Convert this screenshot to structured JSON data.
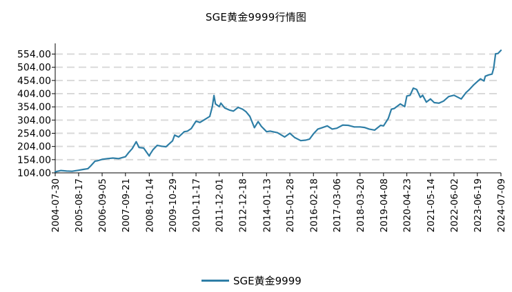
{
  "chart_data": {
    "type": "line",
    "title": "SGE黄金9999行情图",
    "xlabel": "",
    "ylabel": "",
    "ylim": [
      104,
      584
    ],
    "y_ticks": [
      "104.00",
      "154.00",
      "204.00",
      "254.00",
      "304.00",
      "354.00",
      "404.00",
      "454.00",
      "504.00",
      "554.00"
    ],
    "x_ticks": [
      "2004-07-30",
      "2005-08-17",
      "2006-09-05",
      "2007-09-21",
      "2008-10-14",
      "2009-10-29",
      "2010-11-17",
      "2011-12-01",
      "2012-12-18",
      "2014-01-13",
      "2015-01-28",
      "2016-02-18",
      "2017-03-06",
      "2018-03-20",
      "2019-04-08",
      "2020-04-23",
      "2021-05-14",
      "2022-06-02",
      "2023-06-19",
      "2024-07-09"
    ],
    "grid": true,
    "legend_position": "bottom",
    "color": "#2e7ea6",
    "series": [
      {
        "name": "SGE黄金9999",
        "x": [
          "2004-07-30",
          "2004-11-01",
          "2005-02-01",
          "2005-05-01",
          "2005-08-17",
          "2005-11-01",
          "2006-01-15",
          "2006-03-01",
          "2006-05-10",
          "2006-06-20",
          "2006-09-05",
          "2006-12-01",
          "2007-03-01",
          "2007-06-01",
          "2007-09-21",
          "2007-11-10",
          "2008-01-10",
          "2008-03-15",
          "2008-05-01",
          "2008-07-15",
          "2008-10-14",
          "2008-10-28",
          "2008-12-15",
          "2009-02-20",
          "2009-05-01",
          "2009-07-15",
          "2009-09-10",
          "2009-10-29",
          "2009-12-03",
          "2010-02-05",
          "2010-05-10",
          "2010-07-01",
          "2010-09-01",
          "2010-11-17",
          "2011-01-20",
          "2011-04-15",
          "2011-06-30",
          "2011-08-10",
          "2011-09-06",
          "2011-10-01",
          "2011-12-01",
          "2011-12-28",
          "2012-02-28",
          "2012-05-15",
          "2012-07-20",
          "2012-10-05",
          "2012-12-18",
          "2013-02-10",
          "2013-04-15",
          "2013-06-28",
          "2013-08-28",
          "2013-10-20",
          "2014-01-13",
          "2014-03-15",
          "2014-07-10",
          "2014-11-05",
          "2015-01-28",
          "2015-04-15",
          "2015-07-25",
          "2015-10-15",
          "2015-12-17",
          "2016-02-18",
          "2016-05-01",
          "2016-07-08",
          "2016-10-01",
          "2016-12-20",
          "2017-03-06",
          "2017-06-10",
          "2017-09-08",
          "2017-12-15",
          "2018-03-20",
          "2018-06-01",
          "2018-08-16",
          "2018-11-15",
          "2019-02-20",
          "2019-04-08",
          "2019-06-25",
          "2019-08-15",
          "2019-10-01",
          "2020-01-08",
          "2020-03-19",
          "2020-04-23",
          "2020-06-15",
          "2020-08-07",
          "2020-09-30",
          "2020-11-30",
          "2021-01-06",
          "2021-03-08",
          "2021-05-14",
          "2021-07-15",
          "2021-09-30",
          "2021-12-15",
          "2022-03-08",
          "2022-06-02",
          "2022-09-28",
          "2022-12-15",
          "2023-02-10",
          "2023-04-15",
          "2023-06-19",
          "2023-08-10",
          "2023-10-06",
          "2023-10-27",
          "2023-12-20",
          "2024-02-15",
          "2024-03-12",
          "2024-04-12",
          "2024-05-20",
          "2024-07-09"
        ],
        "values": [
          108,
          113,
          111,
          110,
          114,
          117,
          120,
          130,
          148,
          150,
          155,
          158,
          160,
          158,
          165,
          180,
          196,
          222,
          200,
          198,
          168,
          175,
          192,
          208,
          205,
          203,
          215,
          225,
          247,
          240,
          260,
          262,
          272,
          300,
          295,
          307,
          318,
          355,
          397,
          365,
          355,
          368,
          350,
          342,
          338,
          352,
          345,
          336,
          318,
          275,
          298,
          280,
          260,
          262,
          256,
          240,
          254,
          238,
          226,
          228,
          232,
          252,
          270,
          275,
          282,
          270,
          273,
          285,
          284,
          278,
          278,
          276,
          270,
          266,
          284,
          282,
          310,
          345,
          348,
          365,
          355,
          395,
          398,
          425,
          420,
          390,
          398,
          372,
          384,
          370,
          368,
          376,
          393,
          398,
          384,
          408,
          420,
          436,
          450,
          460,
          452,
          470,
          475,
          478,
          500,
          555,
          556,
          568
        ]
      }
    ]
  }
}
